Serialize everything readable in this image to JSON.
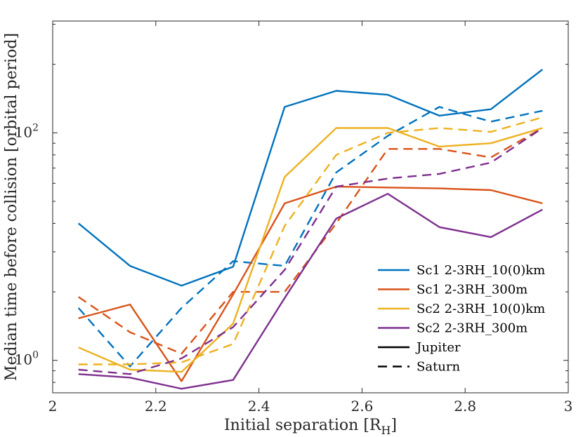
{
  "chart_data": {
    "type": "line",
    "title": "",
    "xlabel": "Initial separation [R",
    "xlabel_subscript": "H",
    "xlabel_suffix": "]",
    "ylabel": "Median time before collision [orbital period]",
    "xlim": [
      2,
      3
    ],
    "ylim": [
      7.2,
      310
    ],
    "yscale": "log",
    "x_ticks": [
      2,
      2.2,
      2.4,
      2.6,
      2.8,
      3
    ],
    "x_tick_labels": [
      "2",
      "2.2",
      "2.4",
      "2.6",
      "2.8",
      "3"
    ],
    "y_ticks": [
      10,
      100
    ],
    "y_tick_labels_base": [
      "10",
      "10"
    ],
    "y_tick_labels_exp": [
      "0",
      "2"
    ],
    "grid": false,
    "legend_position": "bottom-right",
    "x": [
      2.05,
      2.15,
      2.25,
      2.35,
      2.45,
      2.55,
      2.65,
      2.75,
      2.85,
      2.95
    ],
    "series": [
      {
        "group": "Sc1 2-3RH_10(0)km",
        "planet": "Jupiter",
        "color": "#0072BD",
        "dash": "solid",
        "values": [
          40,
          26,
          21.3,
          25.8,
          130,
          153,
          147,
          119,
          127,
          190
        ]
      },
      {
        "group": "Sc1 2-3RH_10(0)km",
        "planet": "Saturn",
        "color": "#0072BD",
        "dash": "dashed",
        "values": [
          17,
          9.4,
          17,
          27.3,
          26,
          67,
          97,
          130,
          112,
          125
        ]
      },
      {
        "group": "Sc1 2-3RH_300m",
        "planet": "Jupiter",
        "color": "#D95319",
        "dash": "solid",
        "values": [
          15.3,
          17.6,
          8.1,
          19.5,
          49,
          58,
          57.5,
          57,
          56,
          49
        ]
      },
      {
        "group": "Sc1 2-3RH_300m",
        "planet": "Saturn",
        "color": "#D95319",
        "dash": "dashed",
        "values": [
          19,
          13.3,
          10.7,
          20,
          20,
          40,
          85,
          85,
          78,
          105
        ]
      },
      {
        "group": "Sc2 2-3RH_10(0)km",
        "planet": "Jupiter",
        "color": "#EDB120",
        "dash": "solid",
        "values": [
          11.4,
          9.1,
          8.9,
          14.5,
          64,
          105,
          105,
          87,
          90,
          105
        ]
      },
      {
        "group": "Sc2 2-3RH_10(0)km",
        "planet": "Saturn",
        "color": "#EDB120",
        "dash": "dashed",
        "values": [
          9.6,
          9.6,
          9.8,
          11.8,
          39,
          80,
          100,
          105,
          101,
          117
        ]
      },
      {
        "group": "Sc2 2-3RH_300m",
        "planet": "Jupiter",
        "color": "#7E2F8E",
        "dash": "solid",
        "values": [
          8.7,
          8.4,
          7.5,
          8.2,
          18.8,
          42,
          54,
          38.5,
          34.8,
          46
        ]
      },
      {
        "group": "Sc2 2-3RH_300m",
        "planet": "Saturn",
        "color": "#7E2F8E",
        "dash": "dashed",
        "values": [
          9.1,
          8.7,
          10.2,
          14,
          25,
          58,
          63,
          66,
          74,
          105
        ]
      }
    ],
    "legend": [
      {
        "label": "Sc1 2-3RH_10(0)km",
        "color": "#0072BD",
        "dash": "solid"
      },
      {
        "label": "Sc1 2-3RH_300m",
        "color": "#D95319",
        "dash": "solid"
      },
      {
        "label": "Sc2 2-3RH_10(0)km",
        "color": "#EDB120",
        "dash": "solid"
      },
      {
        "label": "Sc2 2-3RH_300m",
        "color": "#7E2F8E",
        "dash": "solid"
      },
      {
        "label": "Jupiter",
        "color": "#000000",
        "dash": "solid"
      },
      {
        "label": "Saturn",
        "color": "#000000",
        "dash": "dashed"
      }
    ]
  }
}
